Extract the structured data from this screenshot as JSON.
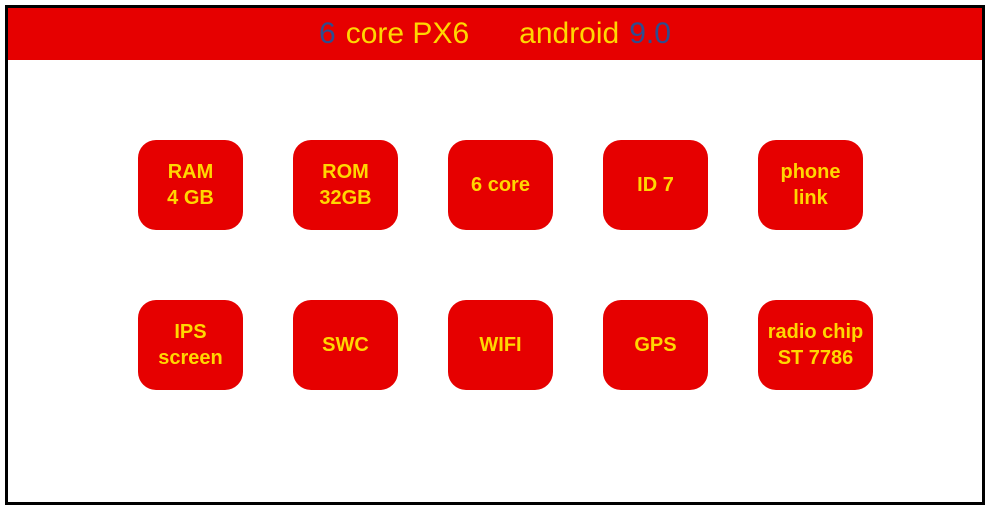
{
  "colors": {
    "tile_bg": "#e60000",
    "tile_text": "#ffd700",
    "header_bg": "#e60000",
    "header_text_yellow": "#ffd700",
    "header_text_blue": "#2e4d8f",
    "page_bg": "#ffffff",
    "border_color": "#000000"
  },
  "header": {
    "six": "6",
    "core_px6": "core PX6",
    "android": "android",
    "version": "9.0"
  },
  "tiles": {
    "ram": {
      "line1": "RAM",
      "line2": "4 GB"
    },
    "rom": {
      "line1": "ROM",
      "line2": "32GB"
    },
    "sixcore": {
      "line1": "6 core"
    },
    "id7": {
      "line1": "ID 7"
    },
    "phonelink": {
      "line1": "phone",
      "line2": "link"
    },
    "ips": {
      "line1": "IPS",
      "line2": "screen"
    },
    "swc": {
      "line1": "SWC"
    },
    "wifi": {
      "line1": "WIFI"
    },
    "gps": {
      "line1": "GPS"
    },
    "radio": {
      "line1": "radio chip",
      "line2": "ST 7786"
    }
  },
  "layout": {
    "tile_border_radius": 18,
    "tile_font_size": 20,
    "header_font_size": 30
  }
}
